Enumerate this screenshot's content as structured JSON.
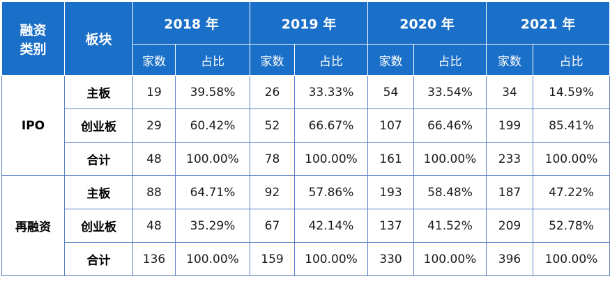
{
  "header": {
    "category": "融资\n类别",
    "segment": "板块",
    "years": [
      "2018 年",
      "2019 年",
      "2020 年",
      "2021 年"
    ],
    "count_label": "家数",
    "ratio_label": "占比"
  },
  "groups": [
    {
      "name": "IPO",
      "rows": [
        {
          "segment": "主板",
          "values": [
            [
              "19",
              "39.58%"
            ],
            [
              "26",
              "33.33%"
            ],
            [
              "54",
              "33.54%"
            ],
            [
              "34",
              "14.59%"
            ]
          ]
        },
        {
          "segment": "创业板",
          "values": [
            [
              "29",
              "60.42%"
            ],
            [
              "52",
              "66.67%"
            ],
            [
              "107",
              "66.46%"
            ],
            [
              "199",
              "85.41%"
            ]
          ]
        },
        {
          "segment": "合计",
          "values": [
            [
              "48",
              "100.00%"
            ],
            [
              "78",
              "100.00%"
            ],
            [
              "161",
              "100.00%"
            ],
            [
              "233",
              "100.00%"
            ]
          ]
        }
      ]
    },
    {
      "name": "再融资",
      "rows": [
        {
          "segment": "主板",
          "values": [
            [
              "88",
              "64.71%"
            ],
            [
              "92",
              "57.86%"
            ],
            [
              "193",
              "58.48%"
            ],
            [
              "187",
              "47.22%"
            ]
          ]
        },
        {
          "segment": "创业板",
          "values": [
            [
              "48",
              "35.29%"
            ],
            [
              "67",
              "42.14%"
            ],
            [
              "137",
              "41.52%"
            ],
            [
              "209",
              "52.78%"
            ]
          ]
        },
        {
          "segment": "合计",
          "values": [
            [
              "136",
              "100.00%"
            ],
            [
              "159",
              "100.00%"
            ],
            [
              "330",
              "100.00%"
            ],
            [
              "396",
              "100.00%"
            ]
          ]
        }
      ]
    }
  ]
}
